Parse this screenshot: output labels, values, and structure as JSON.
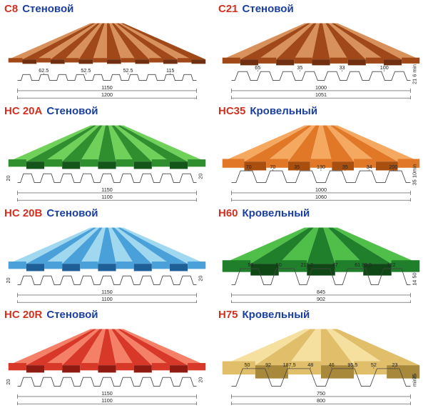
{
  "panels": [
    {
      "code": "С8",
      "type": "Стеновой",
      "code_color": "#d03020",
      "type_color": "#1a3fa0",
      "sheet_color_top": "#a04818",
      "sheet_color_side": "#6f2f10",
      "sheet_highlight": "#d8915a",
      "wave_count": 14,
      "wave_height": 6,
      "profile_below": {
        "shape": "low",
        "reps": 10,
        "h": 8
      },
      "dims_below": [
        "62.5",
        "52.5",
        "52.5",
        "115",
        "1150",
        "1200"
      ],
      "dims_right": []
    },
    {
      "code": "С21",
      "type": "Стеновой",
      "code_color": "#d03020",
      "type_color": "#1a3fa0",
      "sheet_color_top": "#a04818",
      "sheet_color_side": "#6f2f10",
      "sheet_highlight": "#d8915a",
      "wave_count": 11,
      "wave_height": 8,
      "profile_below": {
        "shape": "trap",
        "reps": 8,
        "h": 12
      },
      "dims_below": [
        "65",
        "35",
        "33",
        "100",
        "1000",
        "1051"
      ],
      "dims_right": [
        "6 min",
        "21"
      ]
    },
    {
      "code": "НС 20А",
      "type": "Стеновой",
      "code_color": "#d03020",
      "type_color": "#1a3fa0",
      "sheet_color_top": "#2f8f2f",
      "sheet_color_side": "#14551a",
      "sheet_highlight": "#6fd05a",
      "wave_count": 11,
      "wave_height": 10,
      "profile_below": {
        "shape": "trap",
        "reps": 9,
        "h": 12
      },
      "dims_below": [
        "1150",
        "1100"
      ],
      "dims_right": [
        "20"
      ]
    },
    {
      "code": "НС35",
      "type": "Кровельный",
      "code_color": "#d03020",
      "type_color": "#1a3fa0",
      "sheet_color_top": "#e07828",
      "sheet_color_side": "#a84f10",
      "sheet_highlight": "#f5a860",
      "wave_count": 9,
      "wave_height": 12,
      "profile_below": {
        "shape": "trap",
        "reps": 6,
        "h": 16
      },
      "dims_below": [
        "70",
        "70",
        "35",
        "130",
        "35",
        "34",
        "200",
        "1000",
        "1060"
      ],
      "dims_right": [
        "10min",
        "35"
      ]
    },
    {
      "code": "НС 20В",
      "type": "Стеновой",
      "code_color": "#d03020",
      "type_color": "#1a3fa0",
      "sheet_color_top": "#4aa0d8",
      "sheet_color_side": "#1f5f98",
      "sheet_highlight": "#a0d8f0",
      "wave_count": 11,
      "wave_height": 10,
      "profile_below": {
        "shape": "trap",
        "reps": 9,
        "h": 12
      },
      "dims_below": [
        "1150",
        "1100"
      ],
      "dims_right": [
        "20"
      ]
    },
    {
      "code": "Н60",
      "type": "Кровельный",
      "code_color": "#d03020",
      "type_color": "#1a3fa0",
      "sheet_color_top": "#1f7f2a",
      "sheet_color_side": "#0f4815",
      "sheet_highlight": "#4fbf4a",
      "wave_count": 7,
      "wave_height": 16,
      "profile_below": {
        "shape": "deep",
        "reps": 5,
        "h": 22
      },
      "dims_below": [
        "50",
        "50",
        "211,2",
        "47",
        "61 89.5",
        "122",
        "845",
        "902"
      ],
      "dims_right": [
        "50",
        "14"
      ]
    },
    {
      "code": "НС 20R",
      "type": "Стеновой",
      "code_color": "#d03020",
      "type_color": "#1a3fa0",
      "sheet_color_top": "#d83828",
      "sheet_color_side": "#8f1a12",
      "sheet_highlight": "#f58068",
      "wave_count": 11,
      "wave_height": 10,
      "profile_below": {
        "shape": "trap",
        "reps": 9,
        "h": 12
      },
      "dims_below": [
        "1150",
        "1100"
      ],
      "dims_right": [
        "20"
      ]
    },
    {
      "code": "Н75",
      "type": "Кровельный",
      "code_color": "#d03020",
      "type_color": "#1a3fa0",
      "sheet_color_top": "#e0be6a",
      "sheet_color_side": "#a8883a",
      "sheet_highlight": "#f5e0a0",
      "wave_count": 6,
      "wave_height": 18,
      "profile_below": {
        "shape": "deep",
        "reps": 4,
        "h": 24
      },
      "dims_below": [
        "50",
        "92",
        "187,5",
        "48",
        "46",
        "95,5",
        "52",
        "23",
        "750",
        "800"
      ],
      "dims_right": [
        "75",
        "min6"
      ]
    }
  ]
}
